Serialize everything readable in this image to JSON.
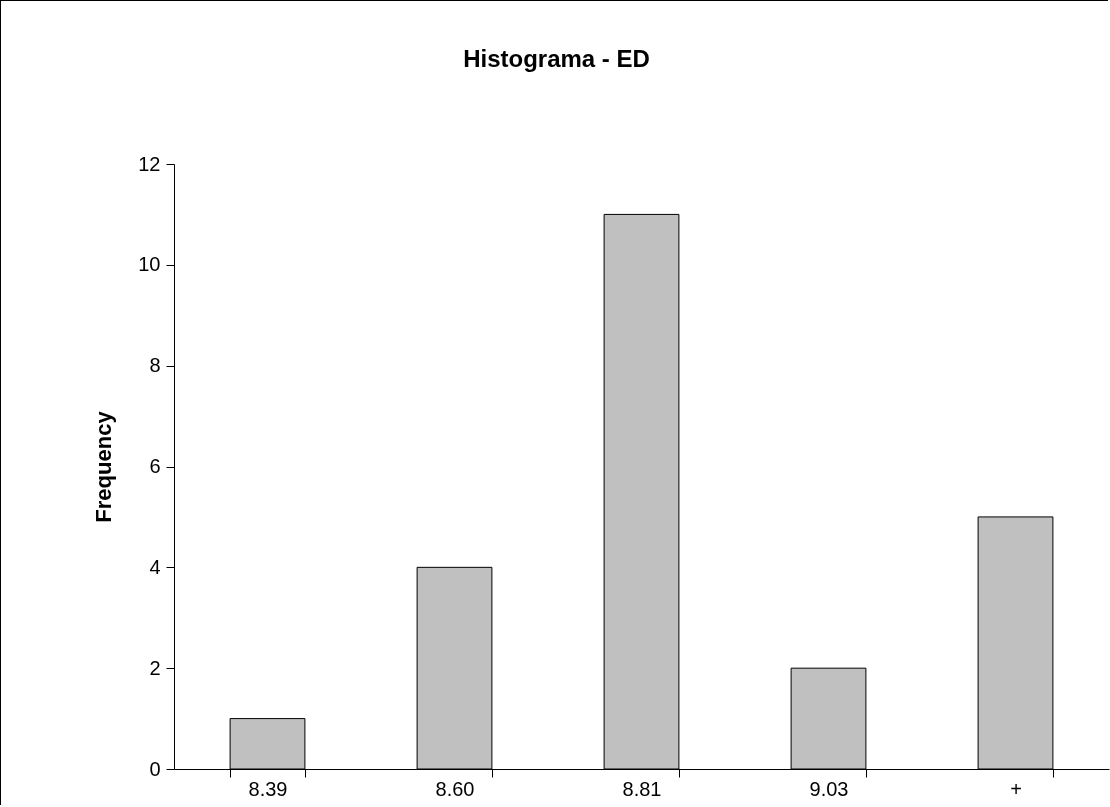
{
  "chart_data": {
    "type": "bar",
    "title": "Histograma - ED",
    "ylabel": "Frequency",
    "categories": [
      "8.39",
      "8.60",
      "8.81",
      "9.03",
      "+"
    ],
    "values": [
      1,
      4,
      11,
      2,
      5
    ],
    "color": "#c0c0c0",
    "ylim": [
      0,
      12
    ],
    "yticks": [
      0,
      2,
      4,
      6,
      8,
      10,
      12
    ],
    "grid": false
  }
}
